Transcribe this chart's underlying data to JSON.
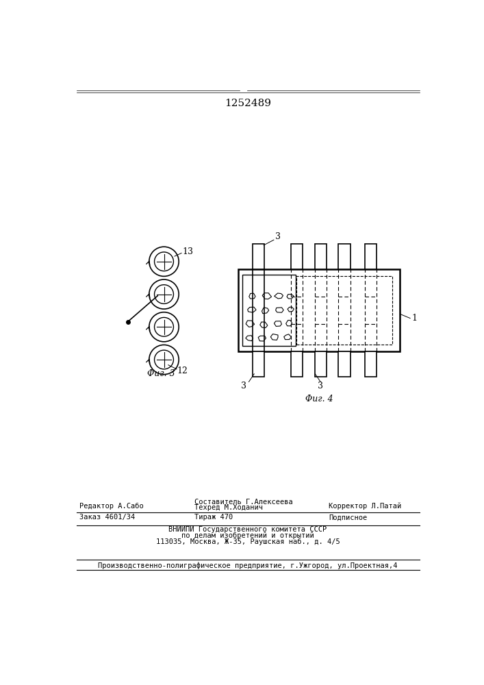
{
  "title": "1252489",
  "title_fontsize": 11,
  "bg_color": "#ffffff",
  "footer_fontsize": 7.5,
  "fig3_label": "Φиг. 3",
  "fig4_label": "Φиг. 4",
  "editor_line": "Редактор А.Сабо",
  "sostavitel_line": "Составитель Г.Алексеева",
  "tehred_line": "Техред М.Ходанич",
  "korrektor_line": "Корректор Л.Патай",
  "zakaz_line": "Заказ 4601/34",
  "tirazh_line": "Тираж 470",
  "podpisnoe_line": "Подписное",
  "vniipи_line1": "ВНИИПИ Государственного комитета СССР",
  "vniipи_line2": "по делам изобретений и открытий",
  "vniipи_line3": "113035, Москва, Ж-35, Раушская наб., д. 4/5",
  "last_line": "Производственно-полиграфическое предприятие, г.Ужгород, ул.Проектная,4"
}
